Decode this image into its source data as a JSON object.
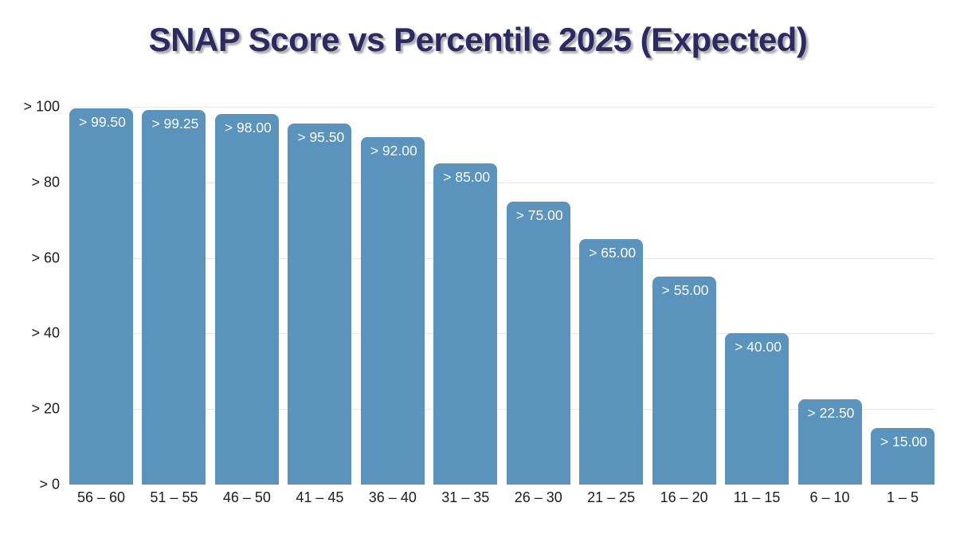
{
  "chart_data": {
    "type": "bar",
    "title": "SNAP Score vs Percentile 2025 (Expected)",
    "categories": [
      "56 – 60",
      "51 – 55",
      "46 – 50",
      "41 – 45",
      "36 – 40",
      "31 – 35",
      "26 – 30",
      "21 – 25",
      "16 – 20",
      "11 – 15",
      "6 – 10",
      "1 – 5"
    ],
    "values": [
      99.5,
      99.25,
      98.0,
      95.5,
      92.0,
      85.0,
      75.0,
      65.0,
      55.0,
      40.0,
      22.5,
      15.0
    ],
    "bar_labels": [
      "> 99.50",
      "> 99.25",
      "> 98.00",
      "> 95.50",
      "> 92.00",
      "> 85.00",
      "> 75.00",
      "> 65.00",
      "> 55.00",
      "> 40.00",
      "> 22.50",
      "> 15.00"
    ],
    "xlabel": "",
    "ylabel": "",
    "ylim": [
      0,
      100
    ],
    "y_tick_values": [
      0,
      20,
      40,
      60,
      80,
      100
    ],
    "y_tick_labels": [
      "> 0",
      "> 20",
      "> 40",
      "> 60",
      "> 80",
      "> 100"
    ],
    "gridline_values": [
      20,
      40,
      60,
      80,
      100
    ],
    "grid": true,
    "legend": false,
    "colors": {
      "bar": "#5a94bd",
      "bar_label_text": "#fcfcfc",
      "title": "#2b2a63",
      "title_shadow": "#aeaeae",
      "axis_text": "#1c1c1c",
      "gridline": "#e7e7e7",
      "background": "#ffffff"
    }
  }
}
